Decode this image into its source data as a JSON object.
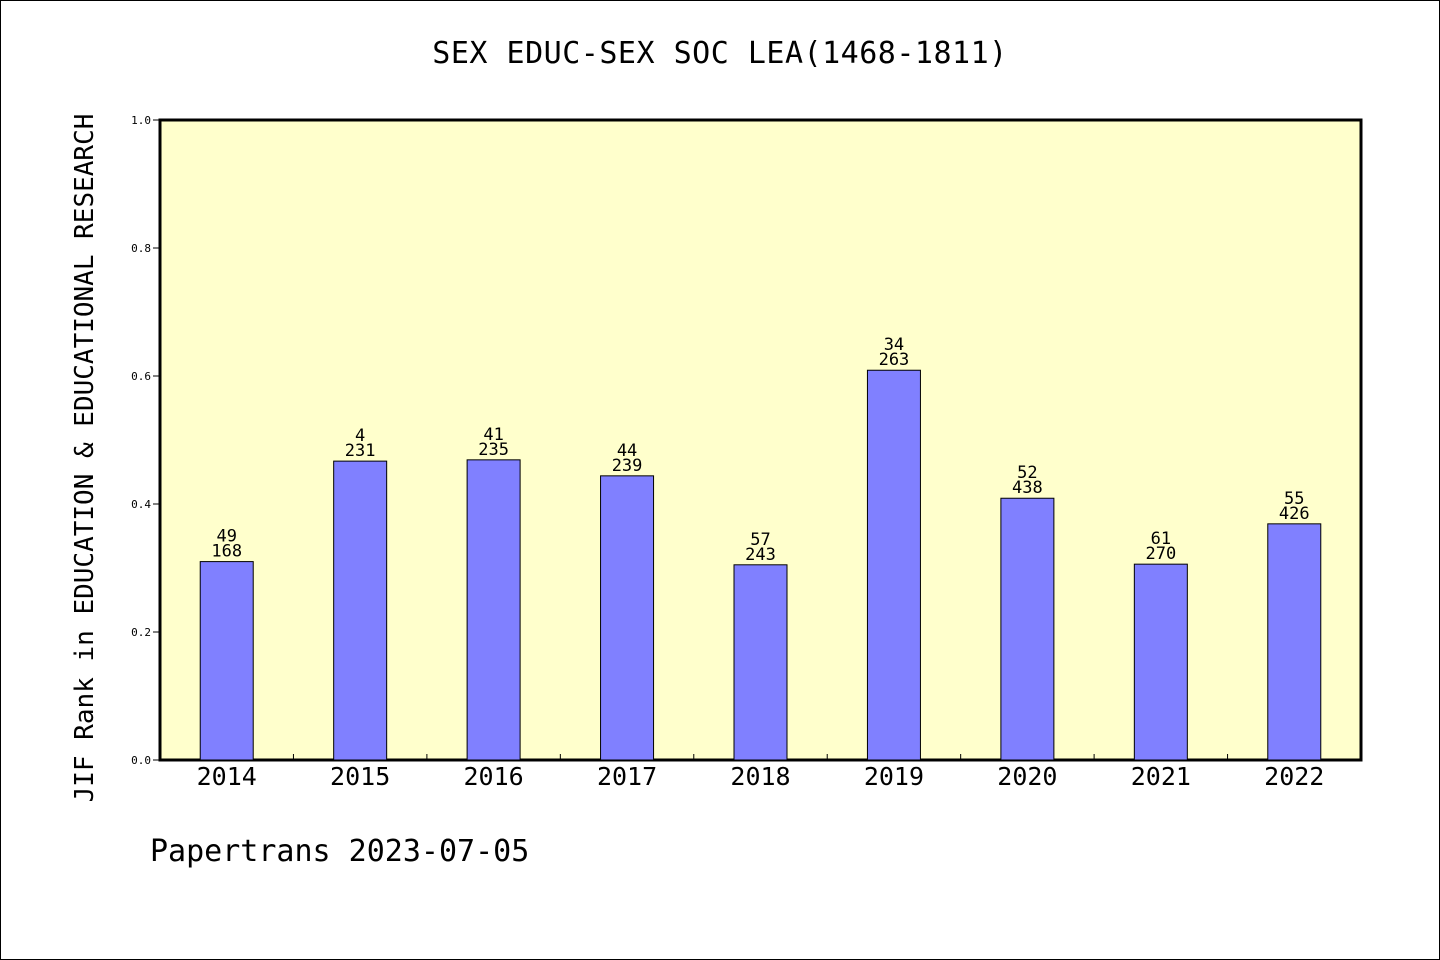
{
  "header": {
    "title": "SEX EDUC-SEX SOC LEA(1468-1811)"
  },
  "footer": {
    "note": "Papertrans 2023-07-05"
  },
  "colors": {
    "plot_background": "#ffffcc",
    "bar_fill": "#8080ff",
    "axis": "#000000"
  },
  "chart_data": {
    "type": "bar",
    "title": "SEX EDUC-SEX SOC LEA(1468-1811)",
    "xlabel": "",
    "ylabel": "JIF Rank in EDUCATION & EDUCATIONAL RESEARCH",
    "ylim": [
      0,
      1.0
    ],
    "yticks": [
      "0.0",
      "0.2",
      "0.4",
      "0.6",
      "0.8",
      "1.0"
    ],
    "categories": [
      "2014",
      "2015",
      "2016",
      "2017",
      "2018",
      "2019",
      "2020",
      "2021",
      "2022"
    ],
    "values": [
      0.31,
      0.467,
      0.469,
      0.444,
      0.305,
      0.609,
      0.409,
      0.306,
      0.369
    ],
    "rank": [
      "49",
      "4",
      "41",
      "44",
      "57",
      "34",
      "52",
      "61",
      "55"
    ],
    "total": [
      "168",
      "231",
      "235",
      "239",
      "243",
      "263",
      "438",
      "270",
      "426"
    ],
    "grid": false,
    "legend": "none"
  }
}
